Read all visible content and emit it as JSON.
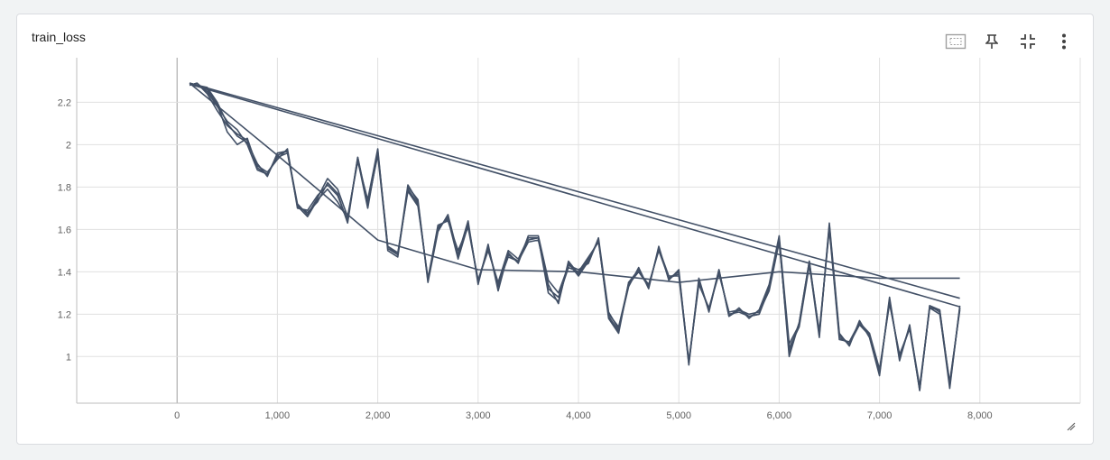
{
  "card": {
    "title": "train_loss",
    "toolbar": [
      {
        "icon": "fit-domain-icon",
        "label": "Fit domain to data"
      },
      {
        "icon": "pin-icon",
        "label": "Pin card"
      },
      {
        "icon": "collapse-icon",
        "label": "Toggle full size"
      },
      {
        "icon": "more-vert-icon",
        "label": "More options"
      }
    ]
  },
  "chart_data": {
    "type": "line",
    "title": "",
    "xlabel": "",
    "ylabel": "",
    "xlim": [
      -1000,
      9000
    ],
    "ylim": [
      0.78,
      2.41
    ],
    "x_ticks": [
      0,
      1000,
      2000,
      3000,
      4000,
      5000,
      6000,
      7000,
      8000
    ],
    "x_tick_labels": [
      "0",
      "1,000",
      "2,000",
      "3,000",
      "4,000",
      "5,000",
      "6,000",
      "7,000",
      "8,000"
    ],
    "y_ticks": [
      1.0,
      1.2,
      1.4,
      1.6,
      1.8,
      2.0,
      2.2
    ],
    "y_tick_labels": [
      "1",
      "1.2",
      "1.4",
      "1.6",
      "1.8",
      "2",
      "2.2"
    ],
    "grid": true,
    "line_color": "#425066",
    "series": [
      {
        "x": [
          125,
          200,
          300,
          400,
          500,
          600,
          700,
          800,
          900,
          1000,
          1100,
          1200,
          1300,
          1400,
          1500,
          1600,
          1700,
          1800,
          1900,
          2000,
          2100,
          2200,
          2300,
          2400,
          2500,
          2600,
          2700,
          2800,
          2900,
          3000,
          3100,
          3200,
          3300,
          3400,
          3500,
          3600,
          3700,
          3800,
          3900,
          4000,
          4100,
          4200,
          4300,
          4400,
          4500,
          4600,
          4700,
          4800,
          4900,
          5000,
          5100,
          5200,
          5300,
          5400,
          5500,
          5600,
          5700,
          5800,
          5900,
          6000,
          6100,
          6200,
          6300,
          6400,
          6500,
          6600,
          6700,
          6800,
          6900,
          7000,
          7100,
          7200,
          7300,
          7400,
          7500,
          7600,
          7700,
          7800
        ],
        "y": [
          2.29,
          2.28,
          2.26,
          2.19,
          2.06,
          2.0,
          2.03,
          1.89,
          1.86,
          1.95,
          1.97,
          1.71,
          1.66,
          1.74,
          1.79,
          1.73,
          1.65,
          1.93,
          1.7,
          1.97,
          1.52,
          1.48,
          1.81,
          1.73,
          1.36,
          1.6,
          1.66,
          1.47,
          1.63,
          1.35,
          1.52,
          1.33,
          1.48,
          1.45,
          1.55,
          1.56,
          1.3,
          1.26,
          1.44,
          1.38,
          1.45,
          1.55,
          1.19,
          1.12,
          1.35,
          1.41,
          1.33,
          1.51,
          1.38,
          1.38,
          0.97,
          1.36,
          1.22,
          1.41,
          1.19,
          1.22,
          1.19,
          1.2,
          1.33,
          1.56,
          1.0,
          1.16,
          1.45,
          1.1,
          1.62,
          1.1,
          1.06,
          1.15,
          1.1,
          0.92,
          1.27,
          0.99,
          1.14,
          0.84,
          1.24,
          1.22,
          0.86,
          1.23
        ]
      },
      {
        "x": [
          125,
          200,
          300,
          400,
          500,
          600,
          700,
          800,
          900,
          1000,
          1100,
          1200,
          1300,
          1400,
          1500,
          1600,
          1700,
          1800,
          1900,
          2000,
          2100,
          2200,
          2300,
          2400,
          2500,
          2600,
          2700,
          2800,
          2900,
          3000,
          3100,
          3200,
          3300,
          3400,
          3500,
          3600,
          3700,
          3800,
          3900,
          4000,
          4100,
          4200,
          4300,
          4400,
          4500,
          4600,
          4700,
          4800,
          4900,
          5000,
          5100,
          5200,
          5300,
          5400,
          5500,
          5600,
          5700,
          5800,
          5900,
          6000,
          6100,
          6200,
          6300,
          6400,
          6500,
          6600,
          6700,
          6800,
          6900,
          7000,
          7100,
          7200,
          7300,
          7400,
          7500,
          7600,
          7700,
          7800
        ],
        "y": [
          2.28,
          2.29,
          2.24,
          2.16,
          2.09,
          2.05,
          2.02,
          1.9,
          1.87,
          1.93,
          1.98,
          1.7,
          1.69,
          1.76,
          1.81,
          1.76,
          1.64,
          1.94,
          1.72,
          1.95,
          1.51,
          1.48,
          1.79,
          1.72,
          1.36,
          1.62,
          1.64,
          1.5,
          1.61,
          1.36,
          1.5,
          1.35,
          1.5,
          1.46,
          1.56,
          1.56,
          1.32,
          1.28,
          1.42,
          1.4,
          1.47,
          1.54,
          1.2,
          1.14,
          1.34,
          1.4,
          1.34,
          1.5,
          1.37,
          1.39,
          0.98,
          1.34,
          1.23,
          1.39,
          1.21,
          1.22,
          1.2,
          1.21,
          1.31,
          1.54,
          1.04,
          1.14,
          1.43,
          1.12,
          1.6,
          1.08,
          1.07,
          1.16,
          1.11,
          0.94,
          1.25,
          1.01,
          1.13,
          0.85,
          1.23,
          1.2,
          0.88,
          1.22
        ]
      },
      {
        "x": [
          125,
          200,
          300,
          400,
          500,
          600,
          700,
          800,
          900,
          1000,
          1100,
          1200,
          1300,
          1400,
          1500,
          1600,
          1700,
          1800,
          1900,
          2000,
          2100,
          2200,
          2300,
          2400,
          2500,
          2600,
          2700,
          2800,
          2900,
          3000,
          3100,
          3200,
          3300,
          3400,
          3500,
          3600,
          3700,
          3800,
          3900,
          4000,
          4100,
          4200,
          4300,
          4400,
          4500,
          4600,
          4700,
          4800,
          4900,
          5000,
          5100,
          5200,
          5300,
          5400,
          5500,
          5600,
          5700,
          5800,
          5900,
          6000,
          6100,
          6200,
          6300,
          6400,
          6500,
          6600,
          6700,
          6800,
          6900,
          7000,
          7100,
          7200,
          7300,
          7400,
          7500,
          7600,
          7700,
          7800
        ],
        "y": [
          2.29,
          2.28,
          2.27,
          2.2,
          2.1,
          2.04,
          2.01,
          1.91,
          1.85,
          1.96,
          1.97,
          1.72,
          1.67,
          1.75,
          1.84,
          1.79,
          1.66,
          1.92,
          1.74,
          1.98,
          1.5,
          1.47,
          1.8,
          1.74,
          1.35,
          1.59,
          1.67,
          1.48,
          1.64,
          1.34,
          1.53,
          1.31,
          1.49,
          1.44,
          1.57,
          1.57,
          1.36,
          1.3,
          1.43,
          1.41,
          1.44,
          1.56,
          1.21,
          1.13,
          1.33,
          1.42,
          1.32,
          1.52,
          1.36,
          1.41,
          0.96,
          1.37,
          1.21,
          1.41,
          1.19,
          1.23,
          1.18,
          1.22,
          1.34,
          1.57,
          1.06,
          1.15,
          1.44,
          1.09,
          1.63,
          1.11,
          1.05,
          1.17,
          1.09,
          0.91,
          1.28,
          0.98,
          1.15,
          0.84,
          1.24,
          1.21,
          0.85,
          1.24
        ]
      },
      {
        "x": [
          125,
          200,
          300,
          400,
          500,
          600,
          700,
          800,
          900,
          1000,
          1100,
          1200,
          1300,
          1400,
          1500,
          1600,
          1700,
          1800,
          1900,
          2000,
          2100,
          2200,
          2300,
          2400,
          2500,
          2600,
          2700,
          2800,
          2900,
          3000,
          3100,
          3200,
          3300,
          3400,
          3500,
          3600,
          3700,
          3800,
          3900,
          4000,
          4100,
          4200,
          4300,
          4400,
          4500,
          4600,
          4700,
          4800,
          4900,
          5000,
          5100,
          5200,
          5300,
          5400,
          5500,
          5600,
          5700,
          5800,
          5900,
          6000,
          6100,
          6200,
          6300,
          6400,
          6500,
          6600,
          6700,
          6800,
          6900,
          7000,
          7100,
          7200,
          7300,
          7400,
          7500,
          7600,
          7700,
          7800
        ],
        "y": [
          2.28,
          2.29,
          2.25,
          2.18,
          2.11,
          2.07,
          2.0,
          1.88,
          1.86,
          1.94,
          1.96,
          1.71,
          1.68,
          1.73,
          1.82,
          1.77,
          1.63,
          1.94,
          1.71,
          1.96,
          1.52,
          1.49,
          1.78,
          1.71,
          1.37,
          1.61,
          1.65,
          1.46,
          1.62,
          1.36,
          1.51,
          1.34,
          1.47,
          1.45,
          1.54,
          1.55,
          1.34,
          1.25,
          1.45,
          1.39,
          1.46,
          1.55,
          1.18,
          1.11,
          1.35,
          1.4,
          1.33,
          1.51,
          1.37,
          1.4,
          0.97,
          1.35,
          1.22,
          1.4,
          1.2,
          1.21,
          1.19,
          1.2,
          1.32,
          1.55,
          1.02,
          1.16,
          1.45,
          1.11,
          1.61,
          1.09,
          1.06,
          1.16,
          1.1,
          0.93,
          1.26,
          1.0,
          1.14,
          0.86,
          1.23,
          1.22,
          0.87,
          1.23
        ]
      },
      {
        "x": [
          125,
          1000,
          2000,
          3000,
          4000,
          5000,
          6000,
          7000,
          7800
        ],
        "y": [
          2.29,
          1.95,
          1.55,
          1.41,
          1.4,
          1.35,
          1.4,
          1.37,
          1.37
        ],
        "hidden_in_plot": false
      },
      {
        "x": [
          125,
          7800
        ],
        "y": [
          2.29,
          1.275
        ]
      },
      {
        "x": [
          125,
          7800
        ],
        "y": [
          2.285,
          1.235
        ]
      }
    ]
  }
}
